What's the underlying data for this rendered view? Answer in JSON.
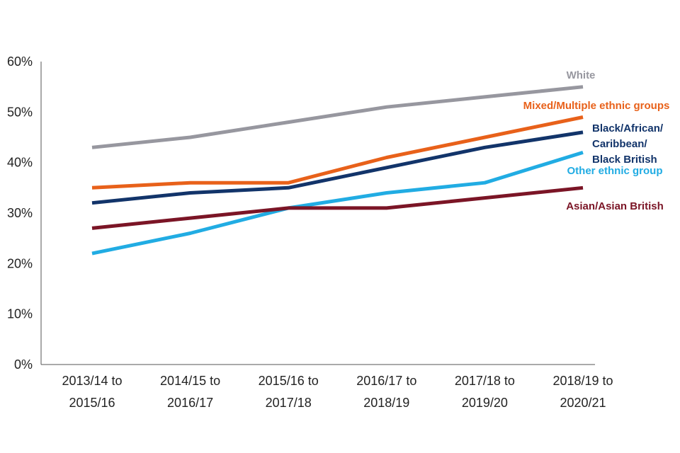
{
  "chart_data": {
    "type": "line",
    "title": "",
    "xlabel": "",
    "ylabel": "",
    "ylim": [
      0,
      60
    ],
    "yticks": [
      "0%",
      "10%",
      "20%",
      "30%",
      "40%",
      "50%",
      "60%"
    ],
    "categories": [
      [
        "2013/14 to",
        "2015/16"
      ],
      [
        "2014/15 to",
        "2016/17"
      ],
      [
        "2015/16 to",
        "2017/18"
      ],
      [
        "2016/17 to",
        "2018/19"
      ],
      [
        "2017/18 to",
        "2019/20"
      ],
      [
        "2018/19 to",
        "2020/21"
      ]
    ],
    "series": [
      {
        "key": "white",
        "name": [
          "White"
        ],
        "color": "#97979f",
        "values": [
          43,
          45,
          48,
          51,
          53,
          55
        ]
      },
      {
        "key": "mixed",
        "name": [
          "Mixed/Multiple ethnic groups"
        ],
        "color": "#e8611a",
        "values": [
          35,
          36,
          36,
          41,
          45,
          49
        ]
      },
      {
        "key": "black",
        "name": [
          "Black/African/",
          "Caribbean/",
          "Black British"
        ],
        "color": "#12346a",
        "values": [
          32,
          34,
          35,
          39,
          43,
          46
        ]
      },
      {
        "key": "other",
        "name": [
          "Other ethnic group"
        ],
        "color": "#21ace3",
        "values": [
          22,
          26,
          31,
          34,
          36,
          42
        ]
      },
      {
        "key": "asian",
        "name": [
          "Asian/Asian British"
        ],
        "color": "#7b1526",
        "values": [
          27,
          29,
          31,
          31,
          33,
          35
        ]
      }
    ]
  }
}
